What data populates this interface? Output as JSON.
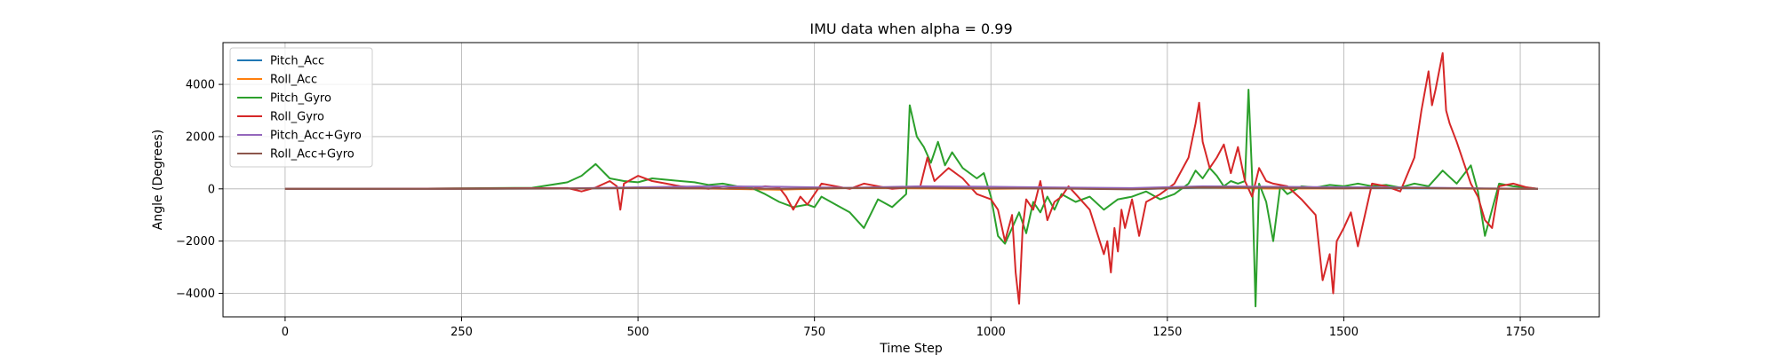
{
  "chart_data": {
    "type": "line",
    "title": "IMU data when alpha = 0.99",
    "xlabel": "Time Step",
    "ylabel": "Angle (Degrees)",
    "xlim": [
      -88,
      1862
    ],
    "ylim": [
      -4900,
      5600
    ],
    "xticks": [
      0,
      250,
      500,
      750,
      1000,
      1250,
      1500,
      1750
    ],
    "xtick_labels": [
      "0",
      "250",
      "500",
      "750",
      "1000",
      "1250",
      "1500",
      "1750"
    ],
    "yticks": [
      -4000,
      -2000,
      0,
      2000,
      4000
    ],
    "ytick_labels": [
      "−4000",
      "−2000",
      "0",
      "2000",
      "4000"
    ],
    "grid": true,
    "legend_position": "top-left",
    "series": [
      {
        "name": "Pitch_Acc",
        "color": "#1f77b4",
        "x": [
          0,
          200,
          400,
          500,
          600,
          700,
          800,
          900,
          1000,
          1100,
          1200,
          1300,
          1400,
          1500,
          1600,
          1700,
          1775
        ],
        "y": [
          0,
          0,
          10,
          30,
          20,
          -20,
          40,
          30,
          10,
          20,
          -10,
          40,
          20,
          30,
          20,
          10,
          0
        ]
      },
      {
        "name": "Roll_Acc",
        "color": "#ff7f0e",
        "x": [
          0,
          200,
          400,
          500,
          600,
          700,
          800,
          900,
          1000,
          1100,
          1200,
          1300,
          1400,
          1500,
          1600,
          1700,
          1775
        ],
        "y": [
          0,
          0,
          20,
          40,
          10,
          -30,
          30,
          20,
          0,
          30,
          0,
          50,
          10,
          20,
          30,
          0,
          0
        ]
      },
      {
        "name": "Pitch_Gyro",
        "color": "#2ca02c",
        "x": [
          0,
          100,
          200,
          300,
          350,
          400,
          420,
          440,
          460,
          480,
          500,
          520,
          540,
          560,
          580,
          600,
          620,
          640,
          660,
          680,
          700,
          720,
          740,
          750,
          760,
          780,
          800,
          820,
          840,
          860,
          880,
          885,
          895,
          905,
          915,
          925,
          935,
          945,
          960,
          980,
          990,
          1000,
          1010,
          1020,
          1030,
          1040,
          1050,
          1060,
          1070,
          1080,
          1090,
          1100,
          1120,
          1140,
          1160,
          1180,
          1200,
          1220,
          1240,
          1260,
          1280,
          1290,
          1300,
          1310,
          1320,
          1330,
          1340,
          1350,
          1360,
          1365,
          1370,
          1375,
          1380,
          1390,
          1400,
          1410,
          1420,
          1440,
          1460,
          1480,
          1500,
          1520,
          1540,
          1560,
          1580,
          1600,
          1620,
          1640,
          1660,
          1680,
          1690,
          1700,
          1720,
          1740,
          1760,
          1775
        ],
        "y": [
          0,
          0,
          10,
          30,
          40,
          250,
          500,
          950,
          400,
          300,
          250,
          400,
          350,
          300,
          250,
          150,
          200,
          100,
          50,
          -200,
          -500,
          -700,
          -600,
          -700,
          -300,
          -600,
          -900,
          -1500,
          -400,
          -700,
          -200,
          3200,
          2000,
          1600,
          1000,
          1800,
          900,
          1400,
          800,
          400,
          600,
          -300,
          -1800,
          -2100,
          -1500,
          -900,
          -1700,
          -500,
          -900,
          -300,
          -800,
          -200,
          -500,
          -300,
          -800,
          -400,
          -300,
          -100,
          -400,
          -200,
          200,
          700,
          400,
          800,
          500,
          100,
          300,
          200,
          300,
          3800,
          500,
          -4500,
          200,
          -500,
          -2000,
          100,
          -200,
          100,
          50,
          150,
          100,
          200,
          100,
          150,
          50,
          200,
          100,
          700,
          200,
          900,
          -100,
          -1800,
          200,
          100,
          50,
          0
        ]
      },
      {
        "name": "Roll_Gyro",
        "color": "#d62728",
        "x": [
          0,
          100,
          200,
          300,
          400,
          420,
          440,
          460,
          470,
          475,
          480,
          500,
          520,
          540,
          560,
          580,
          600,
          620,
          640,
          660,
          680,
          700,
          710,
          720,
          730,
          740,
          750,
          760,
          780,
          800,
          820,
          840,
          860,
          880,
          900,
          910,
          920,
          940,
          960,
          980,
          1000,
          1010,
          1020,
          1030,
          1035,
          1040,
          1045,
          1050,
          1060,
          1070,
          1080,
          1090,
          1100,
          1110,
          1120,
          1140,
          1160,
          1165,
          1170,
          1175,
          1180,
          1185,
          1190,
          1200,
          1210,
          1220,
          1240,
          1260,
          1280,
          1290,
          1295,
          1300,
          1310,
          1320,
          1330,
          1340,
          1350,
          1360,
          1370,
          1380,
          1390,
          1400,
          1420,
          1440,
          1460,
          1470,
          1480,
          1485,
          1490,
          1500,
          1510,
          1520,
          1540,
          1560,
          1580,
          1600,
          1610,
          1620,
          1625,
          1630,
          1640,
          1645,
          1650,
          1660,
          1670,
          1680,
          1690,
          1700,
          1710,
          1720,
          1740,
          1760,
          1775
        ],
        "y": [
          0,
          0,
          10,
          20,
          30,
          -100,
          50,
          300,
          100,
          -800,
          200,
          500,
          300,
          200,
          100,
          50,
          0,
          100,
          50,
          0,
          100,
          50,
          -300,
          -800,
          -300,
          -600,
          -200,
          200,
          100,
          0,
          200,
          100,
          0,
          50,
          100,
          1200,
          300,
          800,
          400,
          -200,
          -400,
          -800,
          -2000,
          -1000,
          -3200,
          -4400,
          -1500,
          -400,
          -800,
          300,
          -1200,
          -500,
          -300,
          100,
          -200,
          -800,
          -2500,
          -2000,
          -3200,
          -1500,
          -2400,
          -800,
          -1500,
          -400,
          -1800,
          -500,
          -200,
          200,
          1200,
          2500,
          3300,
          1800,
          800,
          1200,
          1700,
          600,
          1600,
          300,
          -300,
          800,
          300,
          200,
          100,
          -400,
          -1000,
          -3500,
          -2500,
          -4000,
          -2000,
          -1500,
          -900,
          -2200,
          200,
          100,
          -100,
          1200,
          3000,
          4500,
          3200,
          3800,
          5200,
          3000,
          2500,
          1800,
          1000,
          200,
          -300,
          -1200,
          -1500,
          100,
          200,
          50,
          0
        ]
      },
      {
        "name": "Pitch_Acc+Gyro",
        "color": "#9467bd",
        "x": [
          0,
          200,
          400,
          500,
          600,
          700,
          800,
          900,
          1000,
          1100,
          1200,
          1300,
          1400,
          1500,
          1600,
          1700,
          1775
        ],
        "y": [
          0,
          0,
          20,
          60,
          100,
          80,
          40,
          100,
          80,
          50,
          30,
          100,
          80,
          60,
          50,
          20,
          0
        ]
      },
      {
        "name": "Roll_Acc+Gyro",
        "color": "#8c564b",
        "x": [
          0,
          200,
          400,
          500,
          600,
          700,
          800,
          900,
          1000,
          1100,
          1200,
          1300,
          1400,
          1500,
          1600,
          1700,
          1775
        ],
        "y": [
          0,
          0,
          10,
          30,
          20,
          0,
          30,
          40,
          20,
          10,
          -20,
          60,
          40,
          20,
          30,
          10,
          0
        ]
      }
    ]
  }
}
